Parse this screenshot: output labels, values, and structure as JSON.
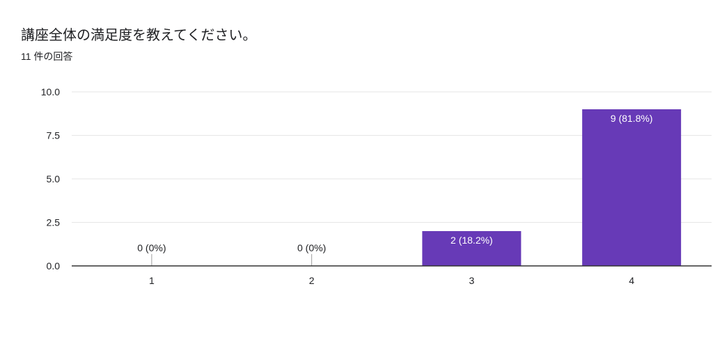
{
  "header": {
    "title": "講座全体の満足度を教えてください。",
    "response_count": "11 件の回答"
  },
  "colors": {
    "bar": "#673ab7",
    "grid": "#e6e6e6",
    "axis": "#333333",
    "text": "#202124",
    "bar_label": "#ffffff"
  },
  "chart_data": {
    "type": "bar",
    "title": "講座全体の満足度を教えてください。",
    "subtitle": "11 件の回答",
    "categories": [
      "1",
      "2",
      "3",
      "4"
    ],
    "values": [
      0,
      0,
      2,
      9
    ],
    "data_labels": [
      "0 (0%)",
      "0 (0%)",
      "2 (18.2%)",
      "9 (81.8%)"
    ],
    "ylim": [
      0,
      10
    ],
    "yticks": [
      "0.0",
      "2.5",
      "5.0",
      "7.5",
      "10.0"
    ],
    "ytick_values": [
      0,
      2.5,
      5,
      7.5,
      10
    ],
    "xlabel": "",
    "ylabel": "",
    "grid": true,
    "legend": "none"
  }
}
